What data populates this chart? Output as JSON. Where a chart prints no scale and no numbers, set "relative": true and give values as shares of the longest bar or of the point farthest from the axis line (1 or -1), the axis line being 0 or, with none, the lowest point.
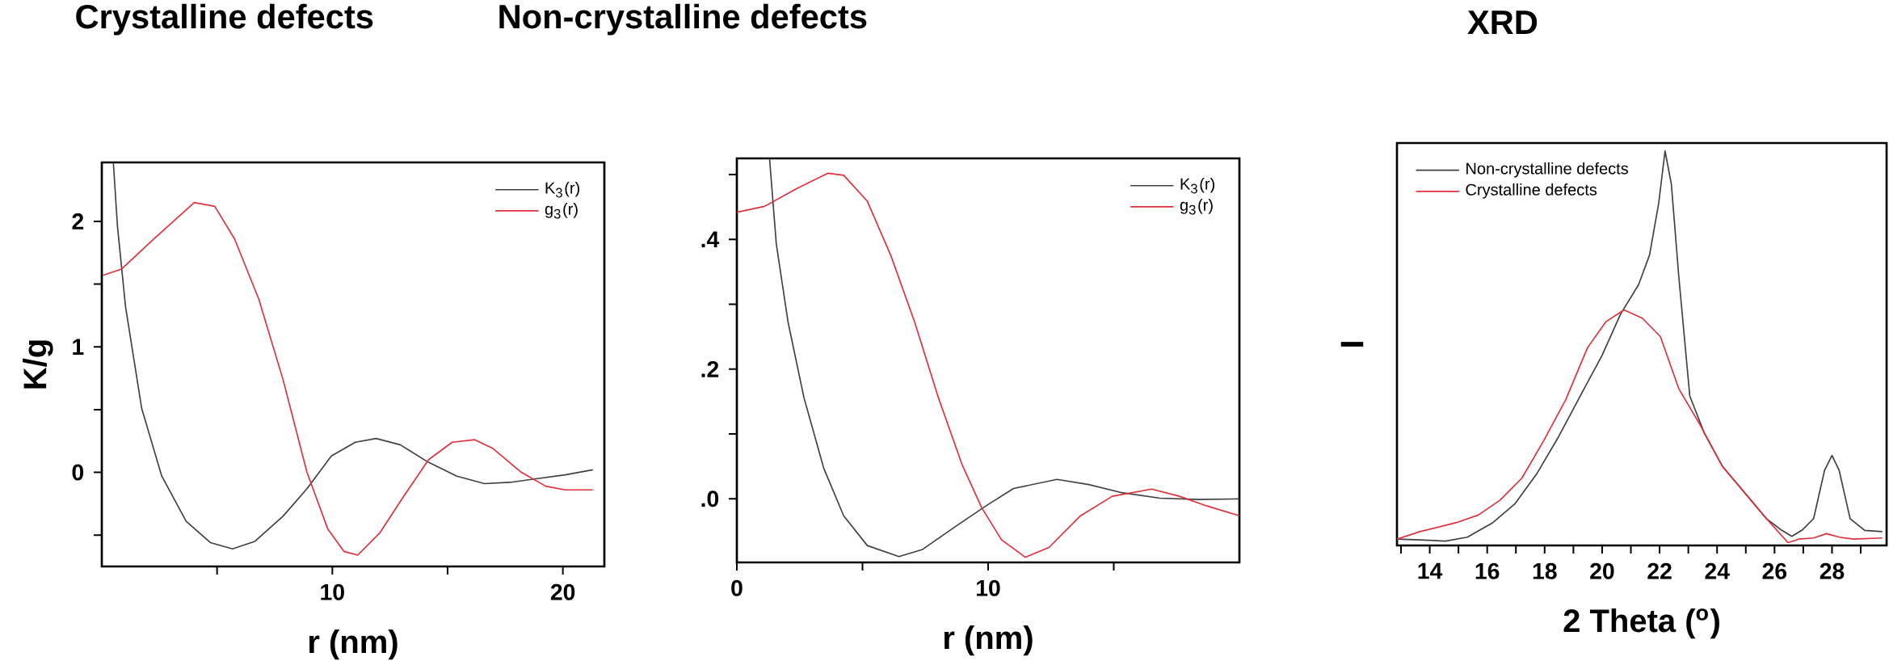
{
  "chart_data": [
    {
      "type": "line",
      "title": "Crystalline defects",
      "xlabel": "r (nm)",
      "ylabel": "K/g",
      "legend": "top right",
      "xlim": [
        0,
        21.8
      ],
      "ylim": [
        -0.75,
        2.47
      ],
      "xticks": [
        {
          "value": 5,
          "label": null
        },
        10,
        {
          "value": 15,
          "label": null
        },
        20
      ],
      "yticks": [
        {
          "value": -0.5,
          "label": null
        },
        0,
        {
          "value": 0.5,
          "label": null
        },
        1,
        {
          "value": 1.5,
          "label": null
        },
        2
      ],
      "series": [
        {
          "name": "K$_{3}$(r)",
          "color": "#404040",
          "x": [
            0.5,
            0.68,
            1.03,
            1.73,
            2.6,
            3.66,
            4.71,
            5.67,
            6.64,
            7.86,
            8.9,
            9.96,
            11.0,
            11.9,
            12.94,
            14.17,
            15.4,
            16.6,
            17.7,
            18.9,
            20.1,
            21.3
          ],
          "values": [
            2.47,
            1.96,
            1.32,
            0.51,
            -0.03,
            -0.39,
            -0.56,
            -0.61,
            -0.55,
            -0.35,
            -0.13,
            0.13,
            0.24,
            0.27,
            0.22,
            0.08,
            -0.03,
            -0.09,
            -0.08,
            -0.05,
            -0.02,
            0.02
          ]
        },
        {
          "name": "g$_{3}$(r)",
          "color": "#e0303a",
          "x": [
            0.04,
            0.86,
            2.26,
            4.01,
            4.9,
            5.76,
            6.81,
            7.86,
            8.9,
            9.8,
            10.5,
            11.1,
            12.07,
            13.1,
            14.17,
            15.2,
            16.18,
            16.97,
            18.2,
            19.25,
            20.1,
            21.3
          ],
          "values": [
            1.57,
            1.62,
            1.86,
            2.15,
            2.12,
            1.86,
            1.38,
            0.74,
            0,
            -0.45,
            -0.63,
            -0.66,
            -0.48,
            -0.19,
            0.1,
            0.24,
            0.26,
            0.19,
            0,
            -0.11,
            -0.14,
            -0.14
          ]
        }
      ]
    },
    {
      "type": "line",
      "title": "Non-crystalline defects",
      "xlabel": "r (nm)",
      "legend": "top right",
      "xlim": [
        0,
        20
      ],
      "ylim": [
        -0.098,
        0.525
      ],
      "xticks": [
        0,
        {
          "value": 5,
          "label": null
        },
        10,
        {
          "value": 15,
          "label": null
        }
      ],
      "yticks": [
        {
          "value": 0,
          "label": ".0"
        },
        {
          "value": 0.1,
          "label": null
        },
        {
          "value": 0.2,
          "label": ".2"
        },
        {
          "value": 0.3,
          "label": null
        },
        {
          "value": 0.4,
          "label": ".4"
        },
        {
          "value": 0.5,
          "label": null
        }
      ],
      "series": [
        {
          "name": "K$_{3}$(r)",
          "color": "#404040",
          "x": [
            1.3,
            1.57,
            2.04,
            2.67,
            3.46,
            4.25,
            5.19,
            6.45,
            7.39,
            8.65,
            9.91,
            11.01,
            12.74,
            14.0,
            15.26,
            16.84,
            18.4,
            20.0
          ],
          "values": [
            0.525,
            0.393,
            0.272,
            0.156,
            0.047,
            -0.026,
            -0.072,
            -0.089,
            -0.078,
            -0.044,
            -0.011,
            0.016,
            0.03,
            0.022,
            0.01,
            0.001,
            -0.001,
            0
          ]
        },
        {
          "name": "g$_{3}$(r)",
          "color": "#e0303a",
          "x": [
            0,
            1.1,
            2.36,
            3.62,
            4.25,
            5.19,
            6.13,
            7.08,
            8.02,
            8.96,
            9.75,
            10.53,
            11.48,
            12.42,
            13.68,
            14.94,
            16.51,
            17.61,
            18.71,
            20.0
          ],
          "values": [
            0.442,
            0.451,
            0.478,
            0.502,
            0.499,
            0.459,
            0.375,
            0.272,
            0.156,
            0.053,
            -0.014,
            -0.063,
            -0.09,
            -0.075,
            -0.026,
            0.004,
            0.015,
            0.004,
            -0.011,
            -0.026
          ]
        }
      ]
    },
    {
      "type": "line",
      "title": "XRD",
      "xlabel": "2 Theta ($^{o}$)",
      "ylabel": "I",
      "legend": "top left",
      "relative": true,
      "xlim": [
        12.86,
        29.9
      ],
      "xticks": [
        {
          "value": 13,
          "label": null
        },
        14,
        {
          "value": 15,
          "label": null
        },
        16,
        {
          "value": 17,
          "label": null
        },
        18,
        {
          "value": 19,
          "label": null
        },
        20,
        {
          "value": 21,
          "label": null
        },
        22,
        {
          "value": 23,
          "label": null
        },
        24,
        {
          "value": 25,
          "label": null
        },
        26,
        {
          "value": 27,
          "label": null
        },
        28,
        {
          "value": 29,
          "label": null
        }
      ],
      "series": [
        {
          "name": "Non-crystalline defects",
          "color": "#404040",
          "x": [
            12.86,
            13.66,
            14.55,
            15.31,
            16.2,
            16.96,
            17.72,
            18.48,
            19.24,
            20.0,
            20.64,
            21.27,
            21.65,
            21.97,
            22.19,
            22.41,
            22.67,
            23.05,
            23.56,
            24.19,
            24.95,
            25.71,
            26.22,
            26.6,
            26.98,
            27.36,
            27.74,
            28.0,
            28.25,
            28.63,
            29.14,
            29.75
          ],
          "values": [
            0.016,
            0.014,
            0.011,
            0.021,
            0.058,
            0.105,
            0.181,
            0.275,
            0.379,
            0.482,
            0.586,
            0.661,
            0.736,
            0.868,
            1.0,
            0.915,
            0.68,
            0.379,
            0.284,
            0.2,
            0.134,
            0.068,
            0.04,
            0.023,
            0.04,
            0.068,
            0.19,
            0.228,
            0.19,
            0.068,
            0.038,
            0.035
          ]
        },
        {
          "name": "Crystalline defects",
          "color": "#e0303a",
          "x": [
            12.86,
            13.66,
            14.93,
            15.69,
            16.45,
            17.21,
            17.97,
            18.73,
            19.49,
            20.13,
            20.76,
            21.4,
            22.03,
            22.67,
            23.43,
            24.19,
            25.08,
            25.84,
            26.47,
            26.85,
            27.36,
            27.81,
            28.25,
            28.76,
            29.75
          ],
          "values": [
            0.016,
            0.035,
            0.058,
            0.077,
            0.115,
            0.171,
            0.266,
            0.369,
            0.501,
            0.567,
            0.597,
            0.576,
            0.529,
            0.397,
            0.303,
            0.2,
            0.124,
            0.058,
            0.007,
            0.016,
            0.019,
            0.03,
            0.021,
            0.016,
            0.019
          ]
        }
      ]
    }
  ]
}
